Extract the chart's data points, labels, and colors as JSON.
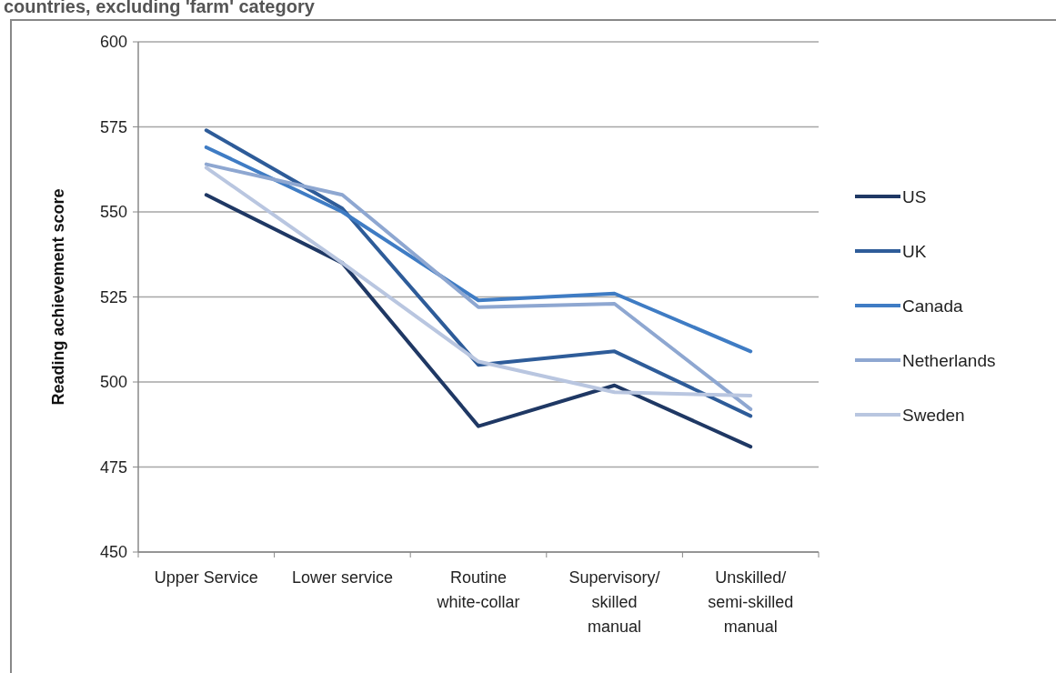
{
  "chart_data": {
    "type": "line",
    "title": "countries, excluding 'farm' category",
    "ylabel": "Reading achievement score",
    "categories": [
      "Upper Service",
      "Lower service",
      "Routine white-collar",
      "Supervisory/ skilled manual",
      "Unskilled/ semi-skilled manual"
    ],
    "series": [
      {
        "name": "US",
        "color": "#1f3864",
        "values": [
          555,
          535,
          487,
          499,
          481
        ]
      },
      {
        "name": "UK",
        "color": "#2e5c99",
        "values": [
          574,
          551,
          505,
          509,
          490
        ]
      },
      {
        "name": "Canada",
        "color": "#3f7cc4",
        "values": [
          569,
          550,
          524,
          526,
          509
        ]
      },
      {
        "name": "Netherlands",
        "color": "#8ea7d1",
        "values": [
          564,
          555,
          522,
          523,
          492
        ]
      },
      {
        "name": "Sweden",
        "color": "#b9c6e0",
        "values": [
          563,
          535,
          506,
          497,
          496
        ]
      }
    ],
    "ylim": [
      450,
      600
    ],
    "yticks": [
      450,
      475,
      500,
      525,
      550,
      575,
      600
    ],
    "grid": "y",
    "legend": "right",
    "marker": "none",
    "line_style": "solid"
  }
}
